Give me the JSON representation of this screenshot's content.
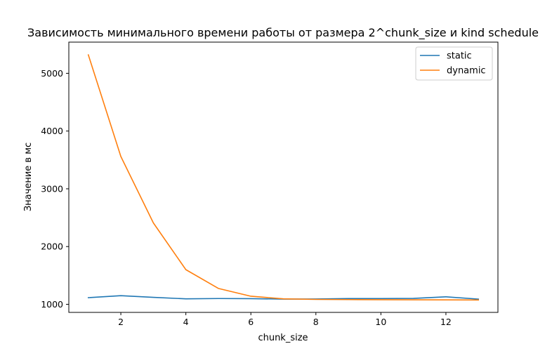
{
  "chart_data": {
    "type": "line",
    "title": "Зависимость минимального времени работы от размера 2^chunk_size и kind schedule",
    "xlabel": "chunk_size",
    "ylabel": "Значение в мс",
    "x": [
      1,
      2,
      3,
      4,
      5,
      6,
      7,
      8,
      9,
      10,
      11,
      12,
      13
    ],
    "xlim": [
      0.4,
      13.6
    ],
    "ylim": [
      860,
      5540
    ],
    "xticks": [
      2,
      4,
      6,
      8,
      10,
      12
    ],
    "yticks": [
      1000,
      2000,
      3000,
      4000,
      5000
    ],
    "grid": false,
    "legend_position": "top-right",
    "series": [
      {
        "name": "static",
        "color": "#1f77b4",
        "values": [
          1115,
          1150,
          1120,
          1095,
          1100,
          1098,
          1090,
          1092,
          1100,
          1100,
          1102,
          1130,
          1090
        ]
      },
      {
        "name": "dynamic",
        "color": "#ff7f0e",
        "values": [
          5320,
          3560,
          2410,
          1600,
          1275,
          1140,
          1095,
          1085,
          1082,
          1080,
          1078,
          1077,
          1075
        ]
      }
    ]
  }
}
